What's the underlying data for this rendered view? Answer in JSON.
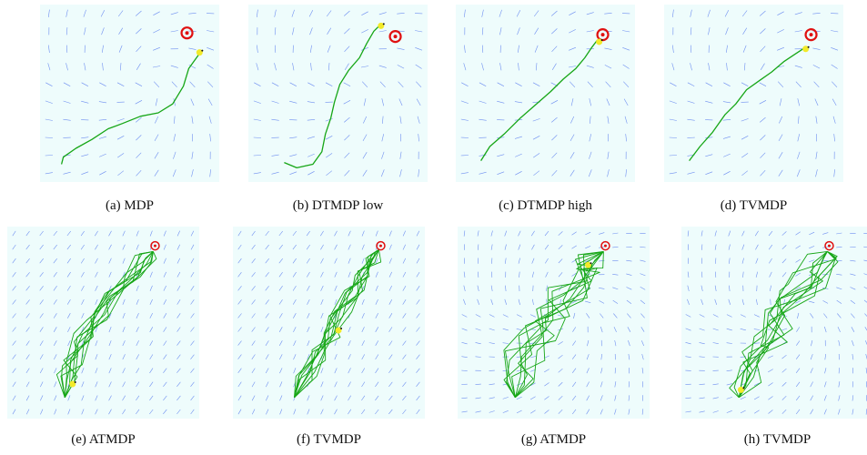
{
  "colors": {
    "background": "#eefcfc",
    "arrow": "#6f8ff0",
    "trajectory": "#16a616",
    "target_red": "#e01010",
    "agent": "#f2ea2a"
  },
  "icons": {
    "target": "target-icon",
    "agent": "agent-icon"
  },
  "panels": [
    {
      "id": "a",
      "caption": "(a)  MDP",
      "field": "vortex",
      "runs": 1,
      "traj": [
        [
          0.12,
          0.9
        ],
        [
          0.13,
          0.86
        ],
        [
          0.2,
          0.81
        ],
        [
          0.29,
          0.76
        ],
        [
          0.38,
          0.7
        ],
        [
          0.46,
          0.67
        ],
        [
          0.56,
          0.63
        ],
        [
          0.66,
          0.61
        ],
        [
          0.74,
          0.56
        ],
        [
          0.8,
          0.46
        ],
        [
          0.83,
          0.36
        ],
        [
          0.88,
          0.29
        ],
        [
          0.9,
          0.26
        ]
      ],
      "target": [
        0.82,
        0.16
      ],
      "agent": [
        0.89,
        0.27
      ],
      "label": ""
    },
    {
      "id": "b",
      "caption": "(b)  DTMDP low",
      "field": "vortex",
      "runs": 1,
      "traj": [
        [
          0.2,
          0.89
        ],
        [
          0.27,
          0.92
        ],
        [
          0.36,
          0.9
        ],
        [
          0.41,
          0.83
        ],
        [
          0.43,
          0.73
        ],
        [
          0.46,
          0.64
        ],
        [
          0.48,
          0.55
        ],
        [
          0.51,
          0.45
        ],
        [
          0.56,
          0.37
        ],
        [
          0.62,
          0.3
        ],
        [
          0.66,
          0.22
        ],
        [
          0.7,
          0.15
        ],
        [
          0.73,
          0.12
        ]
      ],
      "target": [
        0.82,
        0.18
      ],
      "agent": [
        0.74,
        0.12
      ],
      "label": ""
    },
    {
      "id": "c",
      "caption": "(c)  DTMDP high",
      "field": "vortex",
      "runs": 1,
      "traj": [
        [
          0.14,
          0.88
        ],
        [
          0.19,
          0.8
        ],
        [
          0.27,
          0.73
        ],
        [
          0.36,
          0.64
        ],
        [
          0.45,
          0.56
        ],
        [
          0.53,
          0.49
        ],
        [
          0.6,
          0.42
        ],
        [
          0.67,
          0.36
        ],
        [
          0.72,
          0.3
        ],
        [
          0.76,
          0.24
        ],
        [
          0.79,
          0.2
        ]
      ],
      "target": [
        0.82,
        0.17
      ],
      "agent": [
        0.8,
        0.21
      ],
      "label": ""
    },
    {
      "id": "d",
      "caption": "(d)  TVMDP",
      "field": "vortex",
      "runs": 1,
      "traj": [
        [
          0.14,
          0.88
        ],
        [
          0.2,
          0.8
        ],
        [
          0.27,
          0.72
        ],
        [
          0.34,
          0.62
        ],
        [
          0.4,
          0.56
        ],
        [
          0.46,
          0.48
        ],
        [
          0.53,
          0.43
        ],
        [
          0.6,
          0.38
        ],
        [
          0.67,
          0.32
        ],
        [
          0.73,
          0.28
        ],
        [
          0.79,
          0.24
        ]
      ],
      "target": [
        0.82,
        0.17
      ],
      "agent": [
        0.79,
        0.25
      ],
      "label": ""
    },
    {
      "id": "e",
      "caption": "(e)  ATMDP",
      "field": "diagonal",
      "runs": 10,
      "traj": [
        [
          0.3,
          0.89
        ],
        [
          0.31,
          0.8
        ],
        [
          0.34,
          0.7
        ],
        [
          0.4,
          0.58
        ],
        [
          0.47,
          0.47
        ],
        [
          0.55,
          0.36
        ],
        [
          0.64,
          0.26
        ],
        [
          0.72,
          0.17
        ],
        [
          0.76,
          0.13
        ]
      ],
      "target": [
        0.77,
        0.1
      ],
      "agent": [
        0.34,
        0.82
      ],
      "label": ""
    },
    {
      "id": "f",
      "caption": "(f)  TVMDP",
      "field": "diagonal",
      "runs": 10,
      "traj": [
        [
          0.32,
          0.89
        ],
        [
          0.38,
          0.78
        ],
        [
          0.44,
          0.67
        ],
        [
          0.5,
          0.56
        ],
        [
          0.56,
          0.46
        ],
        [
          0.63,
          0.35
        ],
        [
          0.69,
          0.25
        ],
        [
          0.74,
          0.16
        ],
        [
          0.76,
          0.12
        ]
      ],
      "target": [
        0.77,
        0.1
      ],
      "agent": [
        0.55,
        0.54
      ],
      "label": ""
    },
    {
      "id": "g",
      "caption": "(g)  ATMDP",
      "field": "vortex",
      "runs": 10,
      "traj": [
        [
          0.3,
          0.89
        ],
        [
          0.31,
          0.78
        ],
        [
          0.35,
          0.66
        ],
        [
          0.42,
          0.55
        ],
        [
          0.5,
          0.44
        ],
        [
          0.58,
          0.34
        ],
        [
          0.66,
          0.25
        ],
        [
          0.72,
          0.18
        ],
        [
          0.76,
          0.13
        ]
      ],
      "target": [
        0.77,
        0.1
      ],
      "agent": [
        0.68,
        0.2
      ],
      "label": ""
    },
    {
      "id": "h",
      "caption": "(h)  TVMDP",
      "field": "vortex",
      "runs": 10,
      "traj": [
        [
          0.3,
          0.89
        ],
        [
          0.35,
          0.79
        ],
        [
          0.41,
          0.68
        ],
        [
          0.47,
          0.58
        ],
        [
          0.53,
          0.48
        ],
        [
          0.6,
          0.38
        ],
        [
          0.66,
          0.28
        ],
        [
          0.72,
          0.19
        ],
        [
          0.76,
          0.13
        ]
      ],
      "target": [
        0.77,
        0.1
      ],
      "agent": [
        0.31,
        0.85
      ],
      "label": ""
    }
  ]
}
